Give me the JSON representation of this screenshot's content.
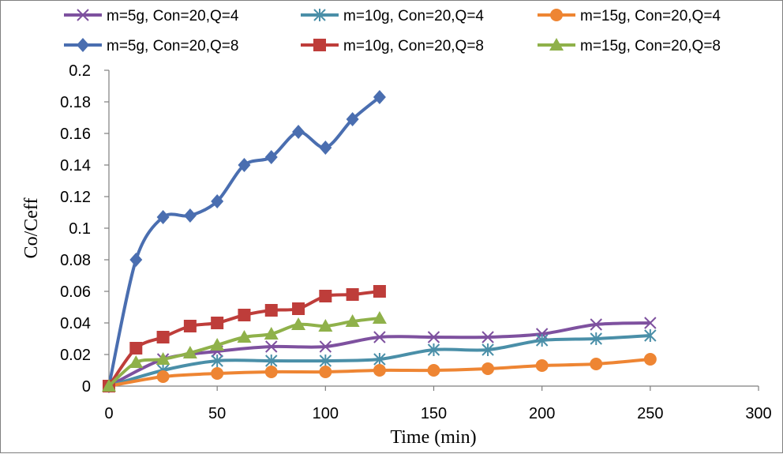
{
  "chart_data": {
    "type": "line",
    "xlabel": "Time (min)",
    "ylabel": "Co/Ceff",
    "xlim": [
      0,
      300
    ],
    "ylim": [
      0,
      0.2
    ],
    "x_ticks": [
      "0",
      "50",
      "100",
      "150",
      "200",
      "250",
      "300"
    ],
    "y_ticks": [
      "0",
      "0.02",
      "0.04",
      "0.06",
      "0.08",
      "0.1",
      "0.12",
      "0.14",
      "0.16",
      "0.18",
      "0.2"
    ],
    "x_tick_values": [
      0,
      50,
      100,
      150,
      200,
      250,
      300
    ],
    "y_tick_values": [
      0,
      0.02,
      0.04,
      0.06,
      0.08,
      0.1,
      0.12,
      0.14,
      0.16,
      0.18,
      0.2
    ],
    "grid": false,
    "legend_position": "top",
    "series": [
      {
        "name": "m=5g, Con=20,Q=4",
        "color": "#7E519F",
        "marker": "x",
        "x": [
          0,
          25,
          50,
          75,
          100,
          125,
          150,
          175,
          200,
          225,
          250
        ],
        "y": [
          0,
          0.017,
          0.022,
          0.025,
          0.025,
          0.031,
          0.031,
          0.031,
          0.033,
          0.039,
          0.04
        ]
      },
      {
        "name": "m=10g, Con=20,Q=4",
        "color": "#4A8FA8",
        "marker": "asterisk",
        "x": [
          0,
          25,
          50,
          75,
          100,
          125,
          150,
          175,
          200,
          225,
          250
        ],
        "y": [
          0,
          0.01,
          0.016,
          0.016,
          0.016,
          0.017,
          0.023,
          0.023,
          0.029,
          0.03,
          0.032
        ]
      },
      {
        "name": "m=15g, Con=20,Q=4",
        "color": "#EE8533",
        "marker": "circle",
        "x": [
          0,
          25,
          50,
          75,
          100,
          125,
          150,
          175,
          200,
          225,
          250
        ],
        "y": [
          0,
          0.006,
          0.008,
          0.009,
          0.009,
          0.01,
          0.01,
          0.011,
          0.013,
          0.014,
          0.017
        ]
      },
      {
        "name": "m=5g, Con=20,Q=8",
        "color": "#4A6EB0",
        "marker": "diamond",
        "x": [
          0,
          12.5,
          25,
          37.5,
          50,
          62.5,
          75,
          87.5,
          100,
          112.5,
          125
        ],
        "y": [
          0,
          0.08,
          0.107,
          0.108,
          0.117,
          0.14,
          0.145,
          0.161,
          0.151,
          0.169,
          0.183
        ]
      },
      {
        "name": "m=10g, Con=20,Q=8",
        "color": "#BE3D3A",
        "marker": "square",
        "x": [
          0,
          12.5,
          25,
          37.5,
          50,
          62.5,
          75,
          87.5,
          100,
          112.5,
          125
        ],
        "y": [
          0,
          0.024,
          0.031,
          0.038,
          0.04,
          0.045,
          0.048,
          0.049,
          0.057,
          0.058,
          0.06
        ]
      },
      {
        "name": "m=15g, Con=20,Q=8",
        "color": "#8FB14A",
        "marker": "triangle",
        "x": [
          0,
          12.5,
          25,
          37.5,
          50,
          62.5,
          75,
          87.5,
          100,
          112.5,
          125
        ],
        "y": [
          0,
          0.015,
          0.017,
          0.021,
          0.026,
          0.031,
          0.033,
          0.039,
          0.038,
          0.041,
          0.043
        ]
      }
    ]
  }
}
